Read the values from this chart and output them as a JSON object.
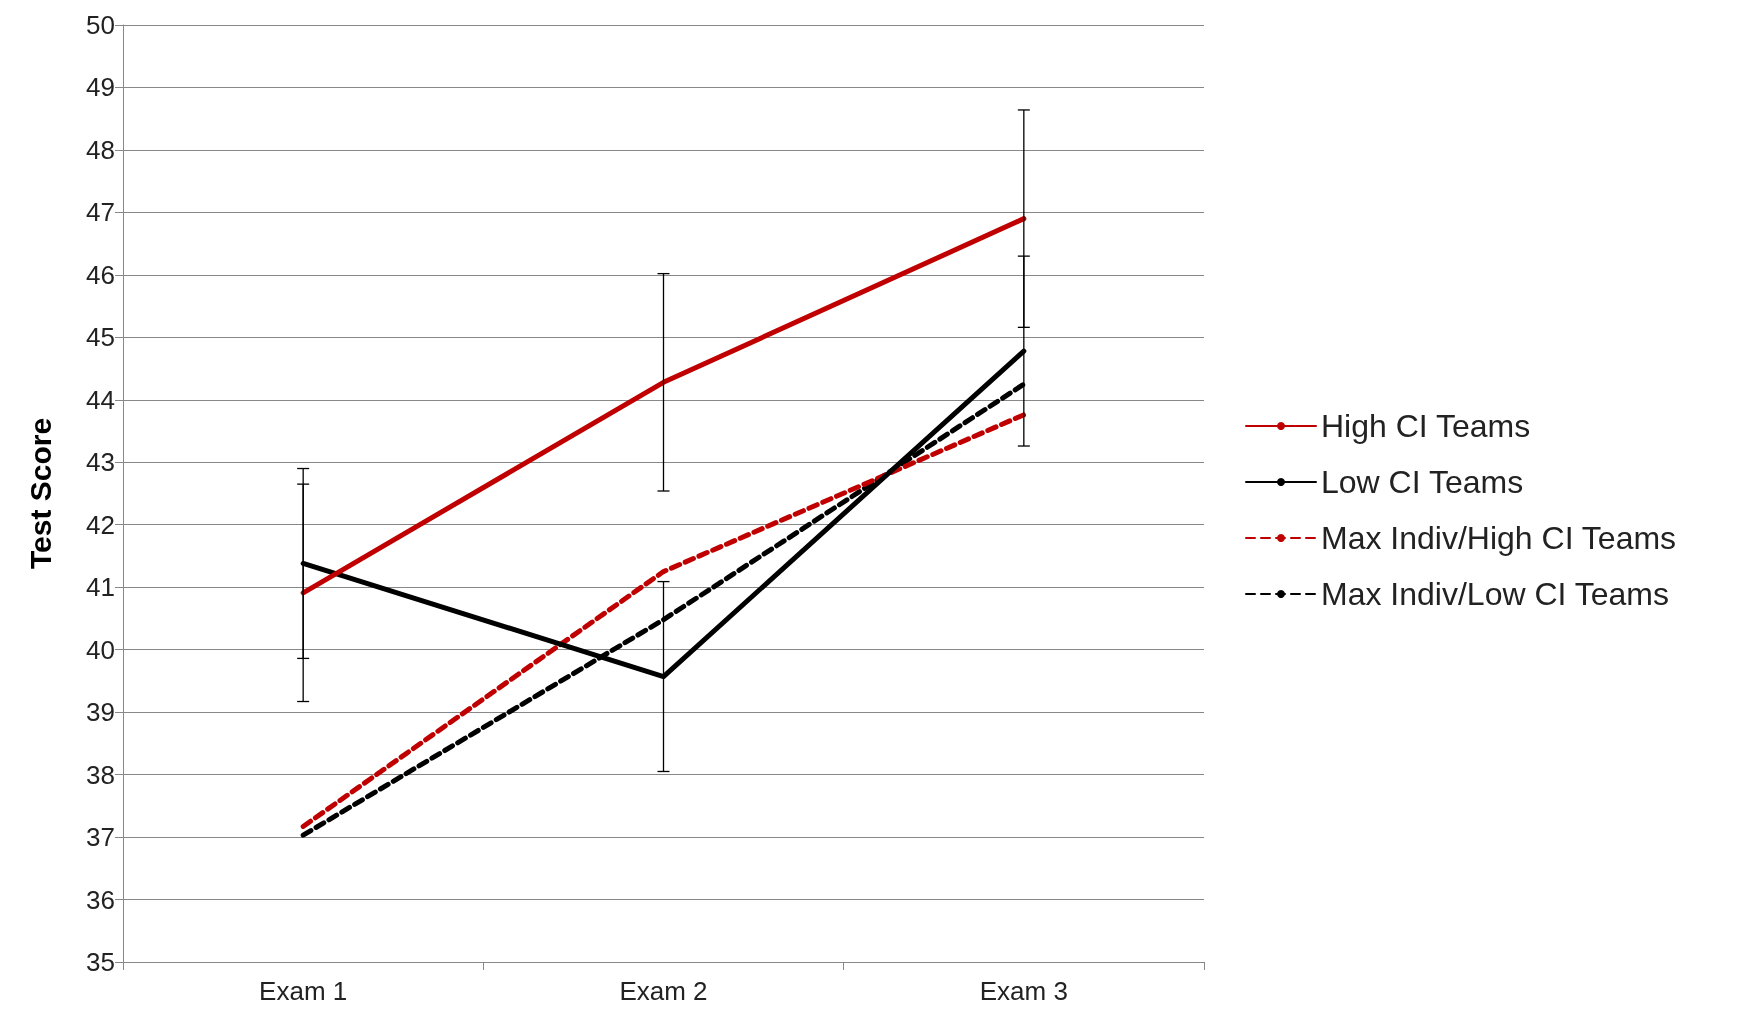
{
  "chart_data": {
    "type": "line",
    "ylabel": "Test Score",
    "categories": [
      "Exam 1",
      "Exam 2",
      "Exam 3"
    ],
    "series": [
      {
        "name": "High CI Teams",
        "color": "#c00000",
        "values": [
          40.91,
          44.28,
          46.9
        ],
        "errors": [
          1.74,
          1.74,
          1.74
        ],
        "line_style": "solid"
      },
      {
        "name": "Low CI Teams",
        "color": "#000000",
        "values": [
          41.38,
          39.57,
          44.78
        ],
        "errors": [
          1.52,
          1.52,
          1.52
        ],
        "line_style": "solid"
      },
      {
        "name": "Max Indiv/High CI Teams",
        "color": "#c00000",
        "values": [
          37.17,
          41.25,
          43.76
        ],
        "line_style": "dashed"
      },
      {
        "name": "Max Indiv/Low CI Teams",
        "color": "#000000",
        "values": [
          37.03,
          40.48,
          44.25
        ],
        "line_style": "dashed"
      }
    ],
    "ylim": [
      35,
      50
    ],
    "yticks": [
      35,
      36,
      37,
      38,
      39,
      40,
      41,
      42,
      43,
      44,
      45,
      46,
      47,
      48,
      49,
      50
    ],
    "grid": "y",
    "legend": "right",
    "marker": "none"
  }
}
